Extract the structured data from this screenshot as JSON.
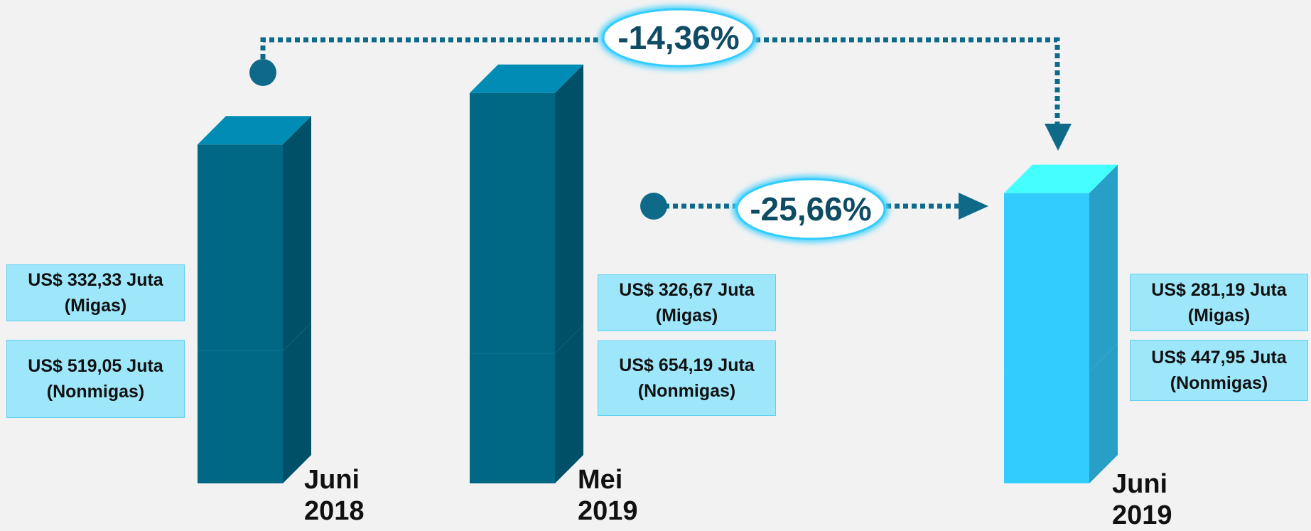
{
  "chart_data": {
    "type": "bar",
    "categories": [
      "Juni 2018",
      "Mei 2019",
      "Juni 2019"
    ],
    "colors": [
      "#006885",
      "#006885",
      "#33ccff"
    ],
    "series": [
      {
        "name": "(Migas)",
        "values": [
          332.33,
          326.67,
          281.19
        ],
        "value_labels": [
          "US$ 332,33 Juta",
          "US$ 326,67 Juta",
          "US$ 281,19 Juta"
        ]
      },
      {
        "name": "(Nonmigas)",
        "values": [
          519.05,
          654.19,
          447.95
        ],
        "value_labels": [
          "US$ 519,05 Juta",
          "US$ 654,19 Juta",
          "US$ 447,95 Juta"
        ]
      }
    ],
    "annotations": [
      "-14,36%",
      "-25,66%"
    ]
  }
}
